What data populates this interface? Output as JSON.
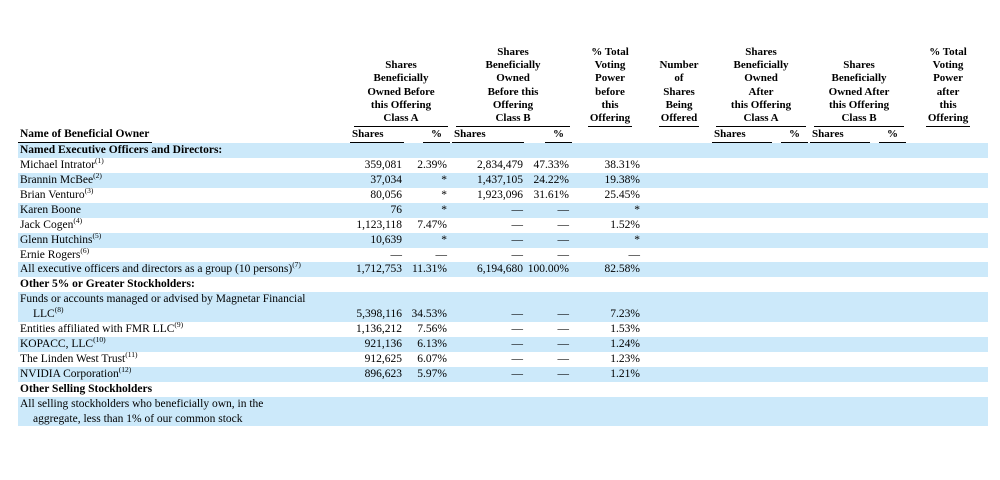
{
  "document": {
    "type": "beneficial-ownership-table",
    "background": "#ffffff",
    "highlight_color": "#cce9fa",
    "text_color": "#000000"
  },
  "columns": {
    "name": {
      "label": "Name of Beneficial Owner"
    },
    "class_a_before": {
      "title": "Shares\nBeneficially\nOwned Before\nthis Offering\nClass A",
      "sub_shares": "Shares",
      "sub_pct": "%"
    },
    "class_b_before": {
      "title": "Shares\nBeneficially\nOwned\nBefore this\nOffering\nClass B",
      "sub_shares": "Shares",
      "sub_pct": "%"
    },
    "voting_before": {
      "title": "% Total\nVoting\nPower\nbefore\nthis",
      "last_word": "Offering"
    },
    "offered": {
      "title": "Number\nof\nShares\nBeing",
      "last_word": "Offered"
    },
    "class_a_after": {
      "title": "Shares\nBeneficially\nOwned\nAfter\nthis Offering\nClass A",
      "sub_shares": "Shares",
      "sub_pct": "%"
    },
    "class_b_after": {
      "title": "Shares\nBeneficially\nOwned After\nthis Offering\nClass B",
      "sub_shares": "Shares",
      "sub_pct": "%"
    },
    "voting_after": {
      "title": "% Total\nVoting\nPower\nafter\nthis",
      "last_word": "Offering"
    }
  },
  "rows": [
    {
      "kind": "section",
      "shaded": true,
      "lines": [
        "Named Executive Officers and Directors:"
      ],
      "sup": "",
      "cells": []
    },
    {
      "kind": "data",
      "shaded": false,
      "lines": [
        "Michael Intrator"
      ],
      "sup": "(1)",
      "cells": [
        "359,081",
        "2.39%",
        "2,834,479",
        "47.33%",
        "38.31%",
        "",
        "",
        "",
        "",
        "",
        ""
      ]
    },
    {
      "kind": "data",
      "shaded": true,
      "lines": [
        "Brannin McBee"
      ],
      "sup": "(2)",
      "cells": [
        "37,034",
        "*",
        "1,437,105",
        "24.22%",
        "19.38%",
        "",
        "",
        "",
        "",
        "",
        ""
      ]
    },
    {
      "kind": "data",
      "shaded": false,
      "lines": [
        "Brian Venturo"
      ],
      "sup": "(3)",
      "cells": [
        "80,056",
        "*",
        "1,923,096",
        "31.61%",
        "25.45%",
        "",
        "",
        "",
        "",
        "",
        ""
      ]
    },
    {
      "kind": "data",
      "shaded": true,
      "lines": [
        "Karen Boone"
      ],
      "sup": "",
      "cells": [
        "76",
        "*",
        "—",
        "—",
        "*",
        "",
        "",
        "",
        "",
        "",
        ""
      ]
    },
    {
      "kind": "data",
      "shaded": false,
      "lines": [
        "Jack Cogen"
      ],
      "sup": "(4)",
      "cells": [
        "1,123,118",
        "7.47%",
        "—",
        "—",
        "1.52%",
        "",
        "",
        "",
        "",
        "",
        ""
      ]
    },
    {
      "kind": "data",
      "shaded": true,
      "lines": [
        "Glenn Hutchins"
      ],
      "sup": "(5)",
      "cells": [
        "10,639",
        "*",
        "—",
        "—",
        "*",
        "",
        "",
        "",
        "",
        "",
        ""
      ]
    },
    {
      "kind": "data",
      "shaded": false,
      "lines": [
        "Ernie Rogers"
      ],
      "sup": "(6)",
      "cells": [
        "—",
        "—",
        "—",
        "—",
        "—",
        "",
        "",
        "",
        "",
        "",
        ""
      ]
    },
    {
      "kind": "data",
      "shaded": true,
      "lines": [
        "All executive officers and directors as a group (10 persons)"
      ],
      "sup": "(7)",
      "cells": [
        "1,712,753",
        "11.31%",
        "6,194,680",
        "100.00%",
        "82.58%",
        "",
        "",
        "",
        "",
        "",
        ""
      ]
    },
    {
      "kind": "section",
      "shaded": false,
      "lines": [
        "Other 5% or Greater Stockholders:"
      ],
      "sup": "",
      "cells": []
    },
    {
      "kind": "data",
      "shaded": true,
      "lines": [
        "Funds or accounts managed or advised by Magnetar Financial",
        "LLC"
      ],
      "sup": "(8)",
      "cells": [
        "5,398,116",
        "34.53%",
        "—",
        "—",
        "7.23%",
        "",
        "",
        "",
        "",
        "",
        ""
      ]
    },
    {
      "kind": "data",
      "shaded": false,
      "lines": [
        "Entities affiliated with FMR LLC"
      ],
      "sup": "(9)",
      "cells": [
        "1,136,212",
        "7.56%",
        "—",
        "—",
        "1.53%",
        "",
        "",
        "",
        "",
        "",
        ""
      ]
    },
    {
      "kind": "data",
      "shaded": true,
      "lines": [
        "KOPACC, LLC"
      ],
      "sup": "(10)",
      "cells": [
        "921,136",
        "6.13%",
        "—",
        "—",
        "1.24%",
        "",
        "",
        "",
        "",
        "",
        ""
      ]
    },
    {
      "kind": "data",
      "shaded": false,
      "lines": [
        "The Linden West Trust"
      ],
      "sup": "(11)",
      "cells": [
        "912,625",
        "6.07%",
        "—",
        "—",
        "1.23%",
        "",
        "",
        "",
        "",
        "",
        ""
      ]
    },
    {
      "kind": "data",
      "shaded": true,
      "lines": [
        "NVIDIA Corporation"
      ],
      "sup": "(12)",
      "cells": [
        "896,623",
        "5.97%",
        "—",
        "—",
        "1.21%",
        "",
        "",
        "",
        "",
        "",
        ""
      ]
    },
    {
      "kind": "section",
      "shaded": false,
      "lines": [
        "Other Selling Stockholders"
      ],
      "sup": "",
      "cells": []
    },
    {
      "kind": "data",
      "shaded": true,
      "lines": [
        "All selling stockholders who beneficially own, in the",
        "aggregate, less than 1% of our common stock"
      ],
      "sup": "",
      "cells": [
        "",
        "",
        "",
        "",
        "",
        "",
        "",
        "",
        "",
        "",
        ""
      ]
    }
  ]
}
